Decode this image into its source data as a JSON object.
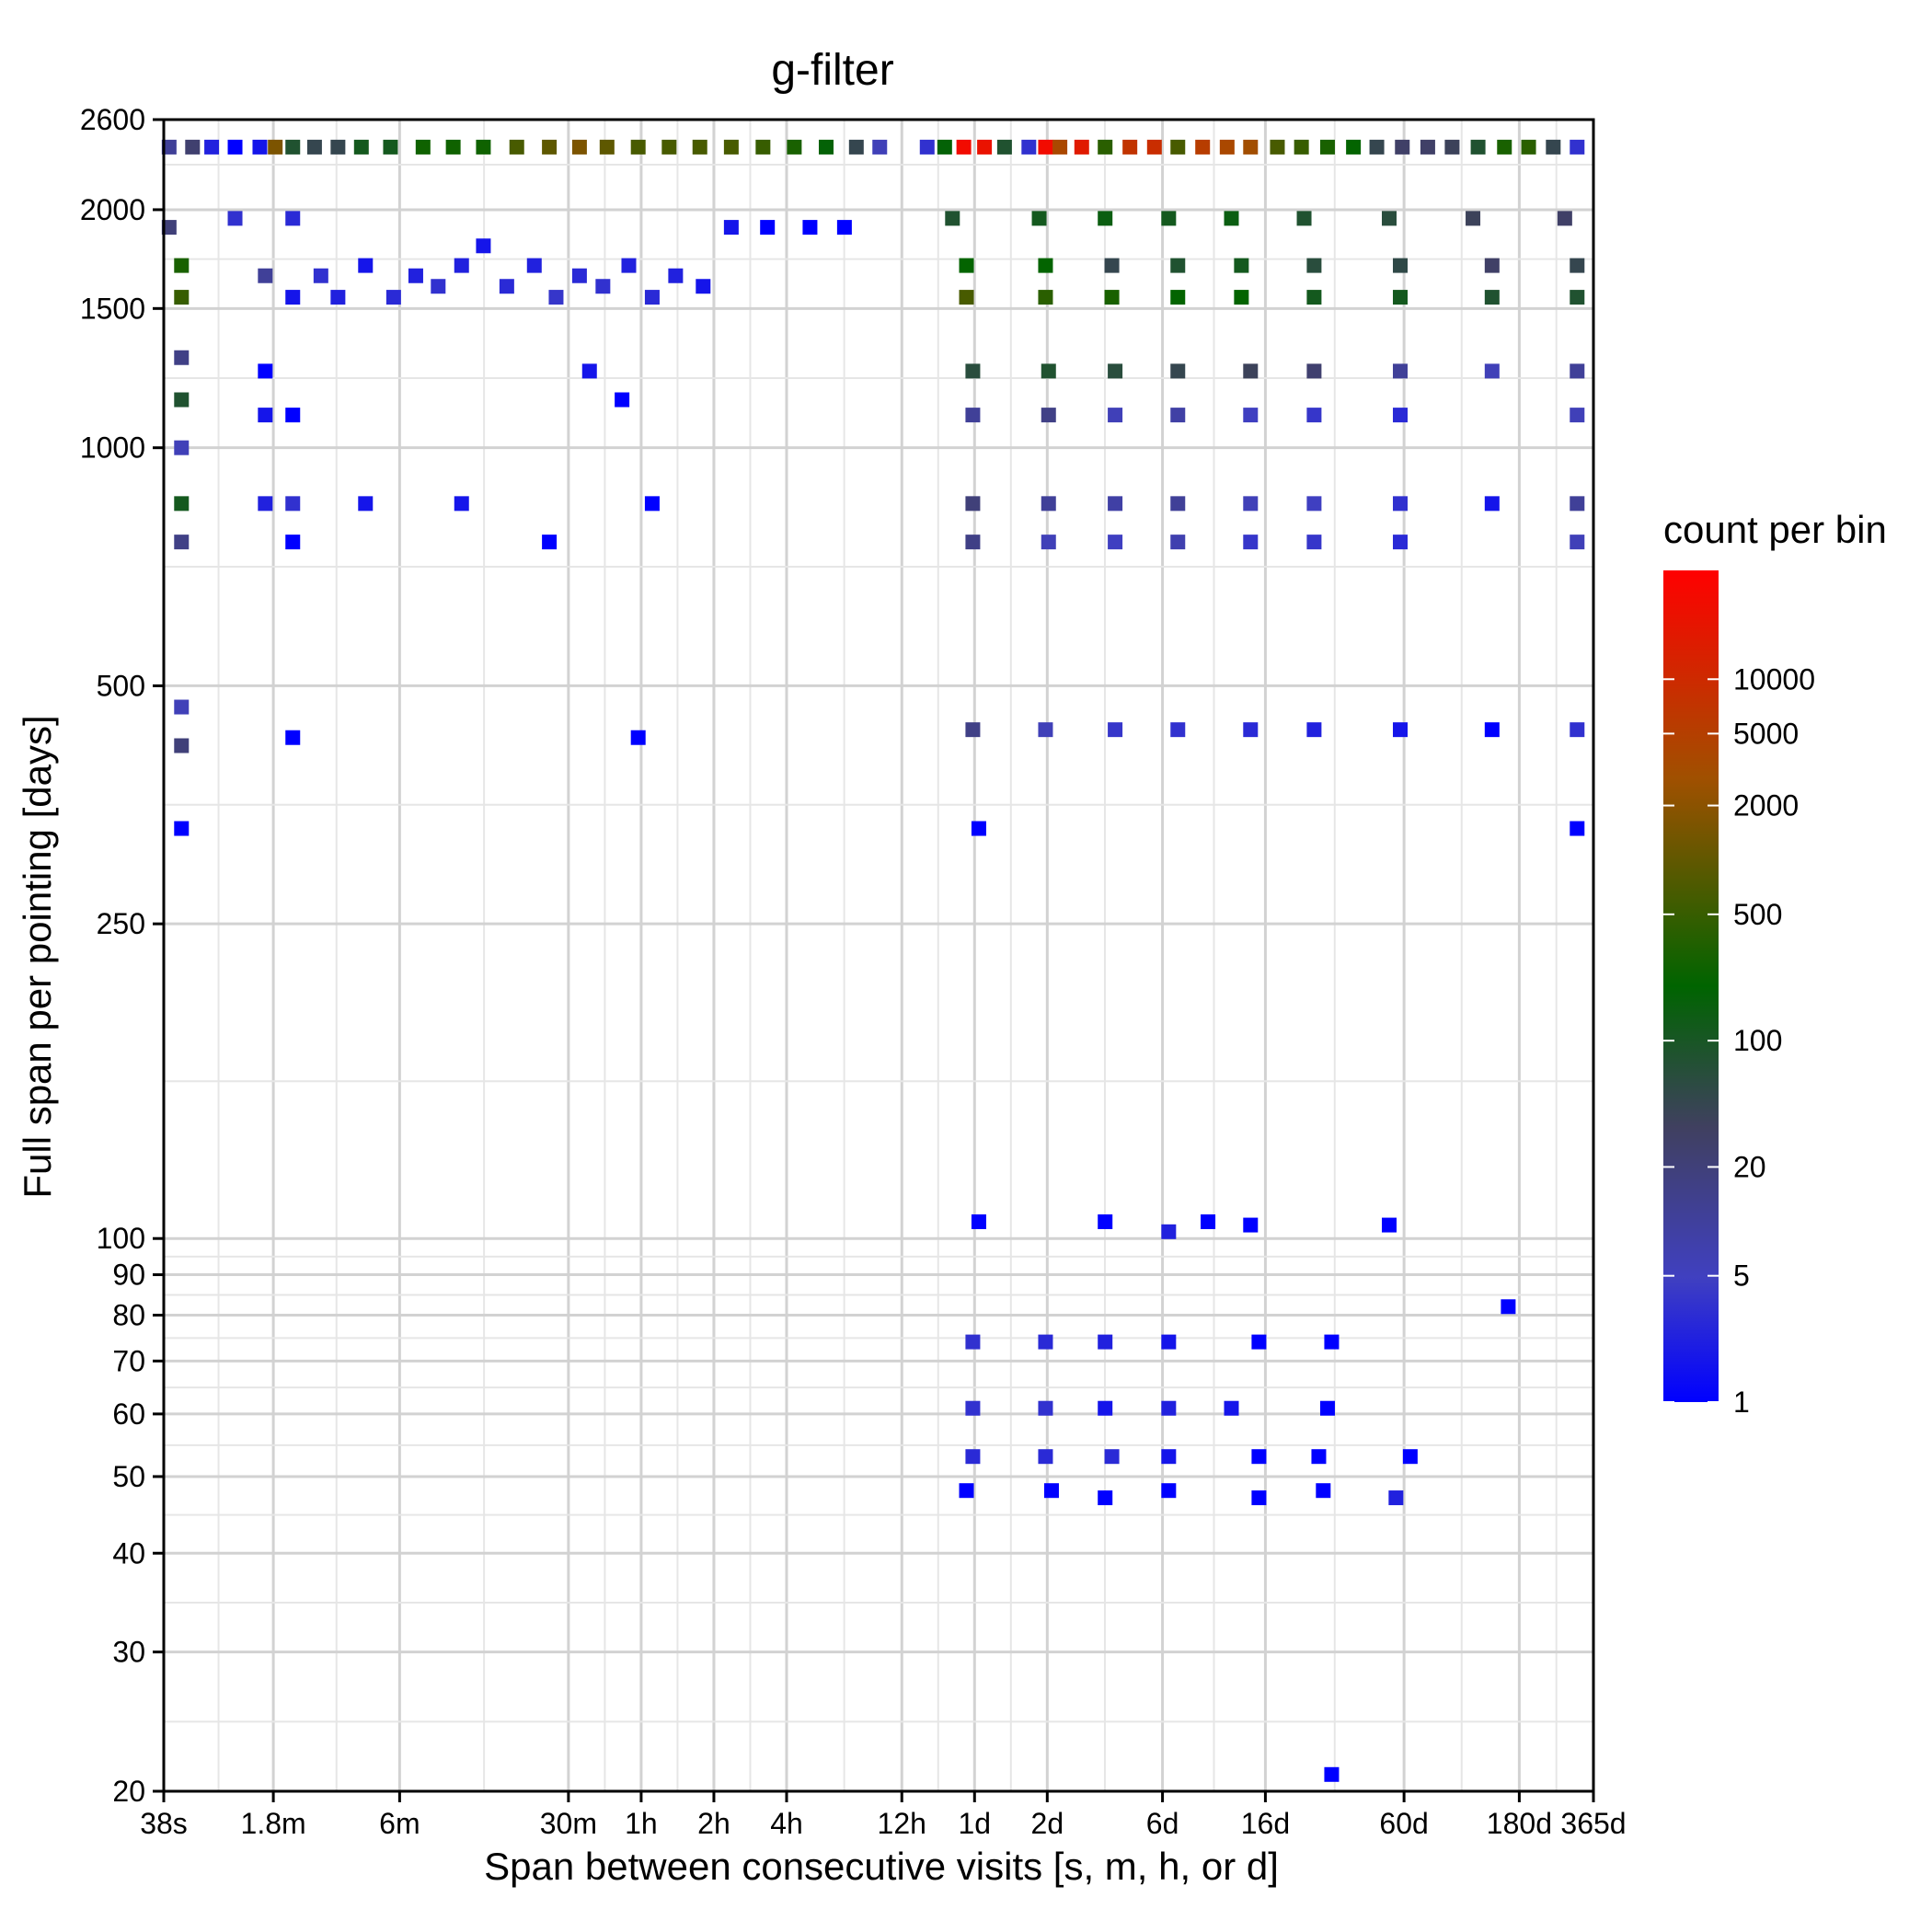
{
  "chart_data": {
    "type": "heatmap",
    "title": "g-filter",
    "xlabel": "Span between consecutive visits  [s, m, h, or d]",
    "ylabel": "Full span per pointing  [days]",
    "x_scale": "log",
    "y_scale": "log",
    "x_range_seconds": [
      38,
      31536000
    ],
    "y_range_days": [
      20,
      2600
    ],
    "x_ticks": [
      {
        "label": "38s",
        "seconds": 38
      },
      {
        "label": "1.8m",
        "seconds": 108
      },
      {
        "label": "6m",
        "seconds": 360
      },
      {
        "label": "30m",
        "seconds": 1800
      },
      {
        "label": "1h",
        "seconds": 3600
      },
      {
        "label": "2h",
        "seconds": 7200
      },
      {
        "label": "4h",
        "seconds": 14400
      },
      {
        "label": "12h",
        "seconds": 43200
      },
      {
        "label": "1d",
        "seconds": 86400
      },
      {
        "label": "2d",
        "seconds": 172800
      },
      {
        "label": "6d",
        "seconds": 518400
      },
      {
        "label": "16d",
        "seconds": 1382400
      },
      {
        "label": "60d",
        "seconds": 5184000
      },
      {
        "label": "180d",
        "seconds": 15552000
      },
      {
        "label": "365d",
        "seconds": 31536000
      }
    ],
    "y_ticks": [
      20,
      30,
      40,
      50,
      60,
      70,
      80,
      90,
      100,
      250,
      500,
      1000,
      1500,
      2000,
      2600
    ],
    "grid": true,
    "legend": {
      "title": "count per bin",
      "position": "right",
      "scale": "log",
      "range": [
        1,
        40000
      ],
      "ticks": [
        1,
        5,
        20,
        100,
        500,
        2000,
        5000,
        10000
      ],
      "colors": [
        "#0000ff",
        "#4040c0",
        "#404060",
        "#006400",
        "#a05000",
        "#ff0000"
      ]
    },
    "cells": [
      {
        "x": 40,
        "y": 2400,
        "v": 20
      },
      {
        "x": 50,
        "y": 2400,
        "v": 50
      },
      {
        "x": 60,
        "y": 2400,
        "v": 3
      },
      {
        "x": 75,
        "y": 2400,
        "v": 1
      },
      {
        "x": 95,
        "y": 2400,
        "v": 2
      },
      {
        "x": 110,
        "y": 2400,
        "v": 3000
      },
      {
        "x": 130,
        "y": 2400,
        "v": 200
      },
      {
        "x": 160,
        "y": 2400,
        "v": 100
      },
      {
        "x": 200,
        "y": 2400,
        "v": 100
      },
      {
        "x": 250,
        "y": 2400,
        "v": 300
      },
      {
        "x": 330,
        "y": 2400,
        "v": 300
      },
      {
        "x": 450,
        "y": 2400,
        "v": 700
      },
      {
        "x": 600,
        "y": 2400,
        "v": 700
      },
      {
        "x": 800,
        "y": 2400,
        "v": 700
      },
      {
        "x": 1100,
        "y": 2400,
        "v": 1500
      },
      {
        "x": 1500,
        "y": 2400,
        "v": 2000
      },
      {
        "x": 2000,
        "y": 2400,
        "v": 3000
      },
      {
        "x": 2600,
        "y": 2400,
        "v": 2000
      },
      {
        "x": 3500,
        "y": 2400,
        "v": 1500
      },
      {
        "x": 4700,
        "y": 2400,
        "v": 1500
      },
      {
        "x": 6300,
        "y": 2400,
        "v": 1500
      },
      {
        "x": 8500,
        "y": 2400,
        "v": 1500
      },
      {
        "x": 11500,
        "y": 2400,
        "v": 1200
      },
      {
        "x": 15500,
        "y": 2400,
        "v": 800
      },
      {
        "x": 21000,
        "y": 2400,
        "v": 500
      },
      {
        "x": 28000,
        "y": 2400,
        "v": 100
      },
      {
        "x": 35000,
        "y": 2400,
        "v": 10
      },
      {
        "x": 55000,
        "y": 2400,
        "v": 5
      },
      {
        "x": 65000,
        "y": 2400,
        "v": 500
      },
      {
        "x": 78000,
        "y": 2400,
        "v": 30000
      },
      {
        "x": 95000,
        "y": 2400,
        "v": 25000
      },
      {
        "x": 115000,
        "y": 2400,
        "v": 200
      },
      {
        "x": 145000,
        "y": 2400,
        "v": 5
      },
      {
        "x": 170000,
        "y": 2400,
        "v": 30000
      },
      {
        "x": 195000,
        "y": 2400,
        "v": 6000
      },
      {
        "x": 240000,
        "y": 2400,
        "v": 20000
      },
      {
        "x": 300000,
        "y": 2400,
        "v": 1000
      },
      {
        "x": 380000,
        "y": 2400,
        "v": 10000
      },
      {
        "x": 480000,
        "y": 2400,
        "v": 12000
      },
      {
        "x": 600000,
        "y": 2400,
        "v": 1500
      },
      {
        "x": 760000,
        "y": 2400,
        "v": 8000
      },
      {
        "x": 960000,
        "y": 2400,
        "v": 6000
      },
      {
        "x": 1200000,
        "y": 2400,
        "v": 5000
      },
      {
        "x": 1550000,
        "y": 2400,
        "v": 1500
      },
      {
        "x": 1950000,
        "y": 2400,
        "v": 1200
      },
      {
        "x": 2500000,
        "y": 2400,
        "v": 800
      },
      {
        "x": 3200000,
        "y": 2400,
        "v": 600
      },
      {
        "x": 4000000,
        "y": 2400,
        "v": 100
      },
      {
        "x": 5100000,
        "y": 2400,
        "v": 60
      },
      {
        "x": 6500000,
        "y": 2400,
        "v": 60
      },
      {
        "x": 8200000,
        "y": 2400,
        "v": 80
      },
      {
        "x": 10500000,
        "y": 2400,
        "v": 200
      },
      {
        "x": 13500000,
        "y": 2400,
        "v": 800
      },
      {
        "x": 17000000,
        "y": 2400,
        "v": 1000
      },
      {
        "x": 21500000,
        "y": 2400,
        "v": 100
      },
      {
        "x": 27000000,
        "y": 2400,
        "v": 5
      },
      {
        "x": 40,
        "y": 1900,
        "v": 40
      },
      {
        "x": 45,
        "y": 1700,
        "v": 800
      },
      {
        "x": 45,
        "y": 1550,
        "v": 1200
      },
      {
        "x": 45,
        "y": 1300,
        "v": 30
      },
      {
        "x": 45,
        "y": 1150,
        "v": 200
      },
      {
        "x": 45,
        "y": 1000,
        "v": 10
      },
      {
        "x": 45,
        "y": 850,
        "v": 300
      },
      {
        "x": 45,
        "y": 760,
        "v": 30
      },
      {
        "x": 45,
        "y": 470,
        "v": 10
      },
      {
        "x": 45,
        "y": 420,
        "v": 40
      },
      {
        "x": 45,
        "y": 330,
        "v": 1
      },
      {
        "x": 75,
        "y": 1950,
        "v": 5
      },
      {
        "x": 100,
        "y": 1650,
        "v": 20
      },
      {
        "x": 100,
        "y": 1250,
        "v": 1
      },
      {
        "x": 100,
        "y": 1100,
        "v": 2
      },
      {
        "x": 100,
        "y": 850,
        "v": 3
      },
      {
        "x": 130,
        "y": 1950,
        "v": 4
      },
      {
        "x": 130,
        "y": 1550,
        "v": 2
      },
      {
        "x": 130,
        "y": 1100,
        "v": 1
      },
      {
        "x": 130,
        "y": 850,
        "v": 5
      },
      {
        "x": 130,
        "y": 760,
        "v": 1
      },
      {
        "x": 130,
        "y": 430,
        "v": 1
      },
      {
        "x": 170,
        "y": 1650,
        "v": 5
      },
      {
        "x": 200,
        "y": 1550,
        "v": 3
      },
      {
        "x": 260,
        "y": 1700,
        "v": 2
      },
      {
        "x": 260,
        "y": 850,
        "v": 2
      },
      {
        "x": 340,
        "y": 1550,
        "v": 4
      },
      {
        "x": 420,
        "y": 1650,
        "v": 3
      },
      {
        "x": 520,
        "y": 1600,
        "v": 5
      },
      {
        "x": 650,
        "y": 1700,
        "v": 3
      },
      {
        "x": 650,
        "y": 850,
        "v": 2
      },
      {
        "x": 800,
        "y": 1800,
        "v": 2
      },
      {
        "x": 1000,
        "y": 1600,
        "v": 4
      },
      {
        "x": 1300,
        "y": 1700,
        "v": 3
      },
      {
        "x": 1600,
        "y": 1550,
        "v": 6
      },
      {
        "x": 2000,
        "y": 1650,
        "v": 4
      },
      {
        "x": 2500,
        "y": 1600,
        "v": 5
      },
      {
        "x": 3200,
        "y": 1700,
        "v": 3
      },
      {
        "x": 4000,
        "y": 1550,
        "v": 4
      },
      {
        "x": 5000,
        "y": 1650,
        "v": 3
      },
      {
        "x": 6500,
        "y": 1600,
        "v": 2
      },
      {
        "x": 8500,
        "y": 1900,
        "v": 2
      },
      {
        "x": 12000,
        "y": 1900,
        "v": 1
      },
      {
        "x": 18000,
        "y": 1900,
        "v": 1
      },
      {
        "x": 25000,
        "y": 1900,
        "v": 1
      },
      {
        "x": 2200,
        "y": 1250,
        "v": 2
      },
      {
        "x": 3000,
        "y": 1150,
        "v": 1
      },
      {
        "x": 4000,
        "y": 850,
        "v": 1
      },
      {
        "x": 1500,
        "y": 760,
        "v": 1
      },
      {
        "x": 3500,
        "y": 430,
        "v": 1
      },
      {
        "x": 70000,
        "y": 1950,
        "v": 200
      },
      {
        "x": 80000,
        "y": 1700,
        "v": 600
      },
      {
        "x": 80000,
        "y": 1550,
        "v": 1500
      },
      {
        "x": 85000,
        "y": 1250,
        "v": 150
      },
      {
        "x": 85000,
        "y": 1100,
        "v": 20
      },
      {
        "x": 85000,
        "y": 850,
        "v": 40
      },
      {
        "x": 85000,
        "y": 760,
        "v": 30
      },
      {
        "x": 85000,
        "y": 440,
        "v": 30
      },
      {
        "x": 90000,
        "y": 330,
        "v": 1
      },
      {
        "x": 90000,
        "y": 105,
        "v": 1
      },
      {
        "x": 85000,
        "y": 74,
        "v": 5
      },
      {
        "x": 85000,
        "y": 61,
        "v": 5
      },
      {
        "x": 85000,
        "y": 53,
        "v": 4
      },
      {
        "x": 80000,
        "y": 48,
        "v": 1
      },
      {
        "x": 160000,
        "y": 1950,
        "v": 300
      },
      {
        "x": 170000,
        "y": 1700,
        "v": 600
      },
      {
        "x": 170000,
        "y": 1550,
        "v": 1000
      },
      {
        "x": 175000,
        "y": 1250,
        "v": 200
      },
      {
        "x": 175000,
        "y": 1100,
        "v": 30
      },
      {
        "x": 175000,
        "y": 850,
        "v": 20
      },
      {
        "x": 175000,
        "y": 760,
        "v": 10
      },
      {
        "x": 170000,
        "y": 440,
        "v": 10
      },
      {
        "x": 170000,
        "y": 74,
        "v": 4
      },
      {
        "x": 170000,
        "y": 61,
        "v": 5
      },
      {
        "x": 170000,
        "y": 53,
        "v": 4
      },
      {
        "x": 180000,
        "y": 48,
        "v": 1
      },
      {
        "x": 300000,
        "y": 1950,
        "v": 400
      },
      {
        "x": 320000,
        "y": 1700,
        "v": 100
      },
      {
        "x": 320000,
        "y": 1550,
        "v": 800
      },
      {
        "x": 330000,
        "y": 1250,
        "v": 150
      },
      {
        "x": 330000,
        "y": 1100,
        "v": 10
      },
      {
        "x": 330000,
        "y": 850,
        "v": 15
      },
      {
        "x": 330000,
        "y": 760,
        "v": 8
      },
      {
        "x": 330000,
        "y": 440,
        "v": 6
      },
      {
        "x": 300000,
        "y": 105,
        "v": 1
      },
      {
        "x": 300000,
        "y": 74,
        "v": 3
      },
      {
        "x": 300000,
        "y": 61,
        "v": 2
      },
      {
        "x": 320000,
        "y": 53,
        "v": 4
      },
      {
        "x": 300000,
        "y": 47,
        "v": 1
      },
      {
        "x": 550000,
        "y": 1950,
        "v": 300
      },
      {
        "x": 600000,
        "y": 1700,
        "v": 200
      },
      {
        "x": 600000,
        "y": 1550,
        "v": 600
      },
      {
        "x": 600000,
        "y": 1250,
        "v": 100
      },
      {
        "x": 600000,
        "y": 1100,
        "v": 15
      },
      {
        "x": 600000,
        "y": 850,
        "v": 20
      },
      {
        "x": 600000,
        "y": 760,
        "v": 12
      },
      {
        "x": 600000,
        "y": 440,
        "v": 5
      },
      {
        "x": 550000,
        "y": 102,
        "v": 3
      },
      {
        "x": 550000,
        "y": 74,
        "v": 2
      },
      {
        "x": 550000,
        "y": 61,
        "v": 3
      },
      {
        "x": 550000,
        "y": 53,
        "v": 2
      },
      {
        "x": 550000,
        "y": 48,
        "v": 1
      },
      {
        "x": 1000000,
        "y": 1950,
        "v": 400
      },
      {
        "x": 1100000,
        "y": 1700,
        "v": 300
      },
      {
        "x": 1100000,
        "y": 1550,
        "v": 600
      },
      {
        "x": 1200000,
        "y": 1250,
        "v": 80
      },
      {
        "x": 1200000,
        "y": 1100,
        "v": 8
      },
      {
        "x": 1200000,
        "y": 850,
        "v": 10
      },
      {
        "x": 1200000,
        "y": 760,
        "v": 6
      },
      {
        "x": 1200000,
        "y": 440,
        "v": 4
      },
      {
        "x": 1200000,
        "y": 104,
        "v": 1
      },
      {
        "x": 800000,
        "y": 105,
        "v": 1
      },
      {
        "x": 1300000,
        "y": 74,
        "v": 1
      },
      {
        "x": 1000000,
        "y": 61,
        "v": 2
      },
      {
        "x": 1300000,
        "y": 53,
        "v": 1
      },
      {
        "x": 1300000,
        "y": 47,
        "v": 1
      },
      {
        "x": 2000000,
        "y": 1950,
        "v": 200
      },
      {
        "x": 2200000,
        "y": 1700,
        "v": 150
      },
      {
        "x": 2200000,
        "y": 1550,
        "v": 300
      },
      {
        "x": 2200000,
        "y": 1250,
        "v": 50
      },
      {
        "x": 2200000,
        "y": 1100,
        "v": 6
      },
      {
        "x": 2200000,
        "y": 850,
        "v": 8
      },
      {
        "x": 2200000,
        "y": 760,
        "v": 6
      },
      {
        "x": 2200000,
        "y": 440,
        "v": 3
      },
      {
        "x": 2600000,
        "y": 74,
        "v": 1
      },
      {
        "x": 2500000,
        "y": 61,
        "v": 1
      },
      {
        "x": 2300000,
        "y": 53,
        "v": 1
      },
      {
        "x": 2400000,
        "y": 48,
        "v": 1
      },
      {
        "x": 2600000,
        "y": 21,
        "v": 1
      },
      {
        "x": 4500000,
        "y": 1950,
        "v": 150
      },
      {
        "x": 5000000,
        "y": 1700,
        "v": 120
      },
      {
        "x": 5000000,
        "y": 1550,
        "v": 300
      },
      {
        "x": 5000000,
        "y": 1250,
        "v": 20
      },
      {
        "x": 5000000,
        "y": 1100,
        "v": 4
      },
      {
        "x": 5000000,
        "y": 850,
        "v": 5
      },
      {
        "x": 5000000,
        "y": 760,
        "v": 4
      },
      {
        "x": 5000000,
        "y": 440,
        "v": 2
      },
      {
        "x": 4500000,
        "y": 104,
        "v": 1
      },
      {
        "x": 5500000,
        "y": 53,
        "v": 1
      },
      {
        "x": 4800000,
        "y": 47,
        "v": 3
      },
      {
        "x": 10000000,
        "y": 1950,
        "v": 80
      },
      {
        "x": 12000000,
        "y": 1700,
        "v": 60
      },
      {
        "x": 12000000,
        "y": 1550,
        "v": 200
      },
      {
        "x": 12000000,
        "y": 1250,
        "v": 10
      },
      {
        "x": 12000000,
        "y": 850,
        "v": 2
      },
      {
        "x": 12000000,
        "y": 440,
        "v": 1
      },
      {
        "x": 14000000,
        "y": 82,
        "v": 1
      },
      {
        "x": 24000000,
        "y": 1950,
        "v": 60
      },
      {
        "x": 27000000,
        "y": 1700,
        "v": 100
      },
      {
        "x": 27000000,
        "y": 1550,
        "v": 200
      },
      {
        "x": 27000000,
        "y": 1250,
        "v": 20
      },
      {
        "x": 27000000,
        "y": 1100,
        "v": 10
      },
      {
        "x": 27000000,
        "y": 850,
        "v": 20
      },
      {
        "x": 27000000,
        "y": 760,
        "v": 10
      },
      {
        "x": 27000000,
        "y": 440,
        "v": 5
      },
      {
        "x": 27000000,
        "y": 330,
        "v": 1
      }
    ]
  }
}
